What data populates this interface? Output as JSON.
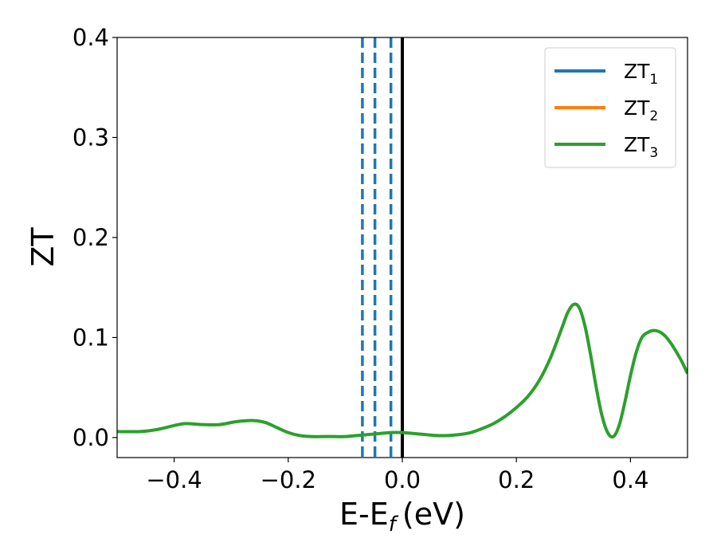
{
  "chart_data": {
    "type": "line",
    "xlabel": "E-E",
    "xlabel_subscript": "f",
    "xlabel_unit": "(eV)",
    "ylabel": "ZT",
    "xlim": [
      -0.5,
      0.5
    ],
    "ylim": [
      -0.02,
      0.4
    ],
    "xticks": [
      -0.4,
      -0.2,
      0.0,
      0.2,
      0.4
    ],
    "xtick_labels": [
      "−0.4",
      "−0.2",
      "0.0",
      "0.2",
      "0.4"
    ],
    "yticks": [
      0.0,
      0.1,
      0.2,
      0.3,
      0.4
    ],
    "ytick_labels": [
      "0.0",
      "0.1",
      "0.2",
      "0.3",
      "0.4"
    ],
    "grid": false,
    "legend_position": "top-right",
    "legend": [
      {
        "base": "ZT",
        "sub": "1",
        "color": "#1f77b4"
      },
      {
        "base": "ZT",
        "sub": "2",
        "color": "#ff7f0e"
      },
      {
        "base": "ZT",
        "sub": "3",
        "color": "#2ca02c"
      }
    ],
    "series_color": "#2ca02c",
    "x": [
      -0.5,
      -0.46,
      -0.43,
      -0.4,
      -0.38,
      -0.35,
      -0.32,
      -0.29,
      -0.26,
      -0.24,
      -0.22,
      -0.2,
      -0.18,
      -0.16,
      -0.14,
      -0.12,
      -0.1,
      -0.08,
      -0.06,
      -0.04,
      -0.02,
      0.0,
      0.02,
      0.04,
      0.06,
      0.08,
      0.1,
      0.12,
      0.14,
      0.16,
      0.18,
      0.2,
      0.22,
      0.24,
      0.26,
      0.28,
      0.29,
      0.3,
      0.31,
      0.32,
      0.33,
      0.34,
      0.35,
      0.36,
      0.37,
      0.38,
      0.39,
      0.4,
      0.41,
      0.42,
      0.43,
      0.44,
      0.45,
      0.46,
      0.47,
      0.48,
      0.49,
      0.5
    ],
    "y": [
      0.006,
      0.006,
      0.008,
      0.012,
      0.014,
      0.013,
      0.013,
      0.016,
      0.017,
      0.015,
      0.01,
      0.005,
      0.002,
      0.001,
      0.001,
      0.001,
      0.001,
      0.002,
      0.003,
      0.004,
      0.005,
      0.005,
      0.004,
      0.003,
      0.002,
      0.002,
      0.003,
      0.005,
      0.009,
      0.014,
      0.021,
      0.03,
      0.041,
      0.057,
      0.08,
      0.11,
      0.125,
      0.133,
      0.13,
      0.112,
      0.083,
      0.05,
      0.022,
      0.005,
      0.001,
      0.012,
      0.035,
      0.062,
      0.085,
      0.1,
      0.105,
      0.107,
      0.106,
      0.102,
      0.095,
      0.086,
      0.076,
      0.064
    ],
    "dashed_vlines": [
      -0.07,
      -0.048,
      -0.02
    ],
    "dashed_vline_color": "#1f77b4",
    "solid_vline": 0.0,
    "solid_vline_color": "#000000"
  }
}
